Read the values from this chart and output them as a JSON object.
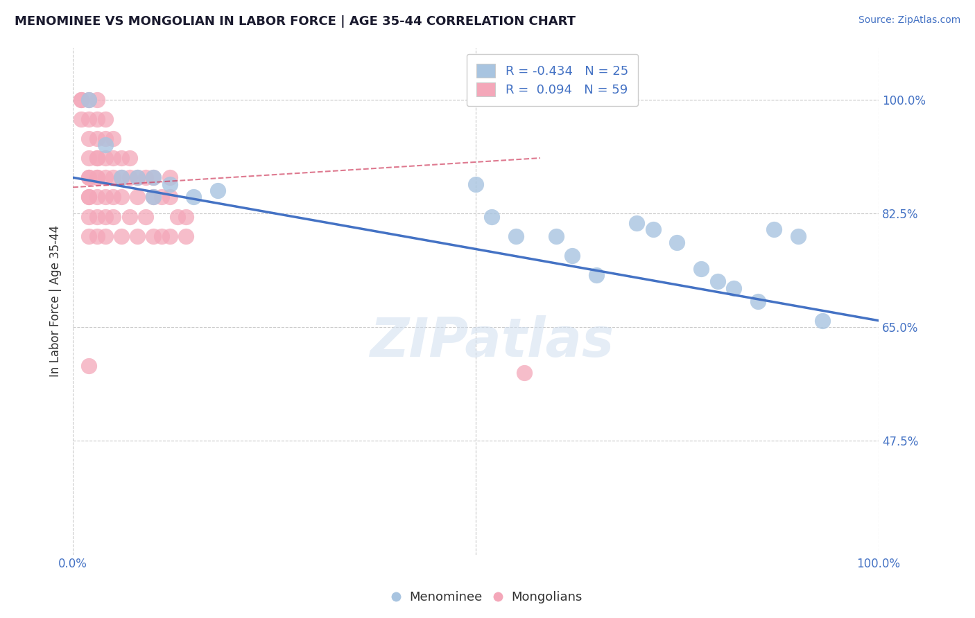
{
  "title": "MENOMINEE VS MONGOLIAN IN LABOR FORCE | AGE 35-44 CORRELATION CHART",
  "source_text": "Source: ZipAtlas.com",
  "ylabel": "In Labor Force | Age 35-44",
  "watermark": "ZIPatlas",
  "xlim": [
    0.0,
    1.0
  ],
  "ylim": [
    0.3,
    1.08
  ],
  "xtick_positions": [
    0.0,
    0.25,
    0.5,
    0.75,
    1.0
  ],
  "xtick_labels": [
    "0.0%",
    "",
    "",
    "",
    "100.0%"
  ],
  "ytick_values": [
    0.475,
    0.65,
    0.825,
    1.0
  ],
  "ytick_labels": [
    "47.5%",
    "65.0%",
    "82.5%",
    "100.0%"
  ],
  "legend_R_menominee": "-0.434",
  "legend_N_menominee": "25",
  "legend_R_mongolian": "0.094",
  "legend_N_mongolian": "59",
  "menominee_color": "#a8c4e0",
  "mongolian_color": "#f4a7b9",
  "menominee_line_color": "#4472c4",
  "mongolian_line_color": "#d04060",
  "menominee_x": [
    0.02,
    0.04,
    0.06,
    0.08,
    0.1,
    0.1,
    0.12,
    0.15,
    0.18,
    0.5,
    0.52,
    0.55,
    0.6,
    0.62,
    0.65,
    0.7,
    0.72,
    0.75,
    0.78,
    0.8,
    0.82,
    0.85,
    0.87,
    0.9,
    0.93
  ],
  "menominee_y": [
    1.0,
    0.93,
    0.88,
    0.88,
    0.88,
    0.85,
    0.87,
    0.85,
    0.86,
    0.87,
    0.82,
    0.79,
    0.79,
    0.76,
    0.73,
    0.81,
    0.8,
    0.78,
    0.74,
    0.72,
    0.71,
    0.69,
    0.8,
    0.79,
    0.66
  ],
  "mongolian_x": [
    0.01,
    0.01,
    0.01,
    0.02,
    0.02,
    0.02,
    0.02,
    0.02,
    0.02,
    0.02,
    0.02,
    0.02,
    0.02,
    0.03,
    0.03,
    0.03,
    0.03,
    0.03,
    0.03,
    0.03,
    0.03,
    0.03,
    0.03,
    0.04,
    0.04,
    0.04,
    0.04,
    0.04,
    0.04,
    0.04,
    0.05,
    0.05,
    0.05,
    0.05,
    0.05,
    0.06,
    0.06,
    0.06,
    0.06,
    0.07,
    0.07,
    0.07,
    0.08,
    0.08,
    0.08,
    0.09,
    0.09,
    0.1,
    0.1,
    0.1,
    0.11,
    0.11,
    0.12,
    0.12,
    0.12,
    0.13,
    0.14,
    0.14,
    0.56
  ],
  "mongolian_y": [
    1.0,
    1.0,
    0.97,
    1.0,
    0.97,
    0.94,
    0.91,
    0.88,
    0.88,
    0.85,
    0.85,
    0.82,
    0.79,
    1.0,
    0.97,
    0.94,
    0.91,
    0.91,
    0.88,
    0.88,
    0.85,
    0.82,
    0.79,
    0.97,
    0.94,
    0.91,
    0.88,
    0.85,
    0.82,
    0.79,
    0.94,
    0.91,
    0.88,
    0.85,
    0.82,
    0.91,
    0.88,
    0.85,
    0.79,
    0.91,
    0.88,
    0.82,
    0.88,
    0.85,
    0.79,
    0.88,
    0.82,
    0.88,
    0.85,
    0.79,
    0.85,
    0.79,
    0.88,
    0.85,
    0.79,
    0.82,
    0.82,
    0.79,
    0.58
  ],
  "mongolian_lone_x": [
    0.02
  ],
  "mongolian_lone_y": [
    0.59
  ],
  "background_color": "#ffffff",
  "grid_color": "#c8c8c8",
  "menominee_trend_x0": 0.0,
  "menominee_trend_x1": 1.0,
  "menominee_trend_y0": 0.88,
  "menominee_trend_y1": 0.66,
  "mongolian_trend_x0": 0.0,
  "mongolian_trend_x1": 0.58,
  "mongolian_trend_y0": 0.865,
  "mongolian_trend_y1": 0.91
}
